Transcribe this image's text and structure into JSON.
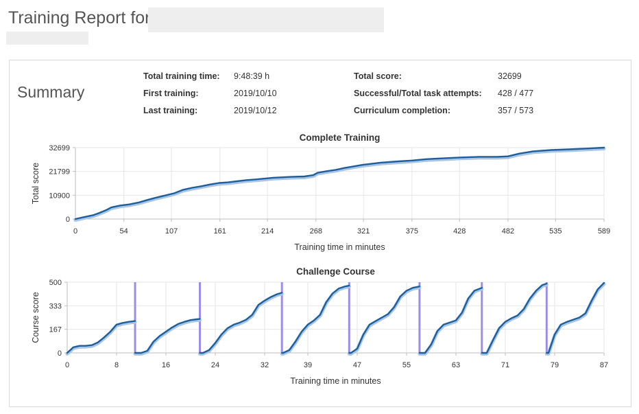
{
  "header": {
    "title": "Training Report for"
  },
  "summary": {
    "heading": "Summary",
    "rows": [
      {
        "label": "Total training time:",
        "value": "9:48:39 h"
      },
      {
        "label": "First training:",
        "value": "2019/10/10"
      },
      {
        "label": "Last training:",
        "value": "2019/10/12"
      },
      {
        "label": "Total score:",
        "value": "32699"
      },
      {
        "label": "Successful/Total task attempts:",
        "value": "428 / 477"
      },
      {
        "label": "Curriculum completion:",
        "value": "357 / 573"
      }
    ]
  },
  "colors": {
    "line": "#1f5f99",
    "line_halo": "#a9c6e6",
    "marker": "#9c8ee8",
    "grid": "#e6e6e6",
    "axis": "#bdbdbd"
  },
  "chart_data": [
    {
      "type": "line",
      "title": "Complete Training",
      "xlabel": "Training time in minutes",
      "ylabel": "Total score",
      "xlim": [
        0,
        589
      ],
      "ylim": [
        0,
        32699
      ],
      "xticks": [
        0,
        54,
        107,
        161,
        214,
        268,
        321,
        375,
        428,
        482,
        535,
        589
      ],
      "yticks": [
        0,
        10900,
        21799,
        32699
      ],
      "grid": true,
      "series": [
        {
          "x": [
            0,
            10,
            20,
            25,
            35,
            40,
            50,
            60,
            70,
            80,
            90,
            100,
            110,
            120,
            130,
            140,
            150,
            160,
            170,
            180,
            190,
            200,
            210,
            220,
            240,
            255,
            265,
            270,
            280,
            290,
            300,
            310,
            320,
            340,
            360,
            375,
            390,
            400,
            410,
            430,
            450,
            470,
            482,
            495,
            510,
            530,
            550,
            570,
            589
          ],
          "y": [
            0,
            900,
            1800,
            2500,
            4200,
            5300,
            6200,
            6700,
            7500,
            8700,
            9800,
            10800,
            11800,
            13400,
            14300,
            15000,
            15800,
            16500,
            16800,
            17300,
            17800,
            18100,
            18500,
            18900,
            19300,
            19500,
            20100,
            21200,
            21900,
            22500,
            23400,
            24100,
            24800,
            25800,
            26400,
            26800,
            27400,
            27600,
            27800,
            28200,
            28500,
            28500,
            28700,
            30000,
            31000,
            31600,
            31900,
            32300,
            32699
          ]
        }
      ]
    },
    {
      "type": "line",
      "title": "Challenge Course",
      "xlabel": "Training time in minutes",
      "ylabel": "Course score",
      "xlim": [
        0,
        87
      ],
      "ylim": [
        0,
        500
      ],
      "xticks": [
        0,
        8,
        16,
        24,
        32,
        39,
        47,
        55,
        63,
        71,
        79,
        87
      ],
      "yticks": [
        0,
        167,
        333,
        500
      ],
      "grid": true,
      "markers": [
        11,
        21.5,
        34.8,
        45.7,
        57.1,
        67.2,
        77.7
      ],
      "series": [
        {
          "segments": [
            {
              "x": [
                0,
                1,
                2,
                3,
                4,
                5,
                6,
                7,
                8,
                9,
                10,
                11
              ],
              "y": [
                0,
                40,
                50,
                50,
                55,
                75,
                110,
                150,
                200,
                212,
                220,
                225
              ]
            },
            {
              "x": [
                11,
                12,
                13,
                14,
                15,
                16,
                17,
                18,
                19,
                20,
                21,
                21.5
              ],
              "y": [
                0,
                0,
                15,
                80,
                120,
                150,
                180,
                205,
                220,
                232,
                238,
                240
              ]
            },
            {
              "x": [
                21.5,
                22,
                23,
                24,
                25,
                26,
                27,
                28,
                29,
                30,
                31,
                32,
                33,
                34,
                34.8
              ],
              "y": [
                0,
                0,
                20,
                70,
                130,
                175,
                200,
                215,
                235,
                270,
                340,
                370,
                395,
                415,
                425
              ]
            },
            {
              "x": [
                34.8,
                35,
                36,
                37,
                38,
                39,
                40,
                41,
                42,
                43,
                44,
                45,
                45.7
              ],
              "y": [
                0,
                0,
                20,
                80,
                150,
                200,
                230,
                270,
                360,
                420,
                455,
                470,
                475
              ]
            },
            {
              "x": [
                45.7,
                46,
                47,
                48,
                49,
                50,
                51,
                52,
                53,
                54,
                55,
                56,
                57.1
              ],
              "y": [
                0,
                0,
                30,
                130,
                200,
                225,
                250,
                275,
                325,
                400,
                440,
                460,
                470
              ]
            },
            {
              "x": [
                57.1,
                58,
                59,
                60,
                61,
                62,
                63,
                64,
                65,
                66,
                67.2
              ],
              "y": [
                0,
                0,
                60,
                155,
                200,
                215,
                230,
                285,
                385,
                440,
                460
              ]
            },
            {
              "x": [
                67.2,
                68,
                69,
                70,
                71,
                72,
                73,
                74,
                75,
                76,
                77,
                77.7
              ],
              "y": [
                0,
                0,
                90,
                175,
                220,
                245,
                265,
                310,
                385,
                440,
                480,
                490
              ]
            },
            {
              "x": [
                77.7,
                78,
                79,
                80,
                81,
                82,
                83,
                84,
                85,
                86,
                87
              ],
              "y": [
                0,
                0,
                130,
                200,
                220,
                235,
                250,
                280,
                370,
                450,
                495
              ]
            }
          ]
        }
      ]
    }
  ]
}
